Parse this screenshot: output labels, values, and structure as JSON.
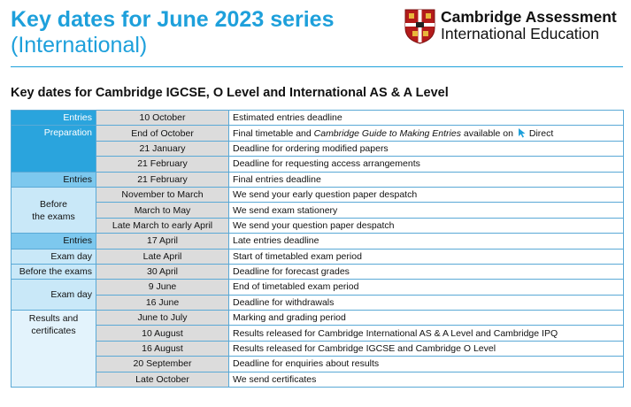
{
  "header": {
    "title": "Key dates for June 2023 series",
    "subtitle": "(International)"
  },
  "brand": {
    "line1": "Cambridge Assessment",
    "line2": "International Education",
    "colors": {
      "shield_red": "#b31b1b",
      "shield_gold": "#e8b73b"
    }
  },
  "section_heading": "Key dates for Cambridge IGCSE, O Level and International AS & A Level",
  "colors": {
    "accent": "#1ea0db",
    "dark_cell": "#2aa4dd",
    "medium_cell": "#7dc8ee",
    "light_cell": "#c9e8f8",
    "pale_cell": "#e3f3fc",
    "date_cell": "#dcdcdc"
  },
  "table": {
    "groups": [
      {
        "label": "Entries",
        "style": "dark",
        "rows": [
          {
            "date": "10 October",
            "desc": "Estimated entries deadline"
          }
        ]
      },
      {
        "label": "Preparation",
        "style": "dark",
        "rows": [
          {
            "date": "End of October",
            "desc_pre": "Final timetable and ",
            "desc_em": "Cambridge Guide to Making Entries",
            "desc_post": " available on ",
            "desc_tail": "Direct",
            "icon": "cursor-arrow-icon"
          },
          {
            "date": "21 January",
            "desc": "Deadline for ordering modified papers"
          },
          {
            "date": "21 February",
            "desc": "Deadline for requesting access arrangements"
          }
        ]
      },
      {
        "label": "Entries",
        "style": "medium",
        "rows": [
          {
            "date": "21 February",
            "desc": "Final entries deadline"
          }
        ]
      },
      {
        "label_line1": "Before",
        "label_line2": "the exams",
        "style": "light",
        "rows": [
          {
            "date": "November to March",
            "desc": "We send your early question paper despatch"
          },
          {
            "date": "March to May",
            "desc": "We send exam stationery"
          },
          {
            "date": "Late March to early April",
            "desc": "We send your question paper despatch"
          }
        ]
      },
      {
        "label": "Entries",
        "style": "medium",
        "rows": [
          {
            "date": "17 April",
            "desc": "Late entries deadline"
          }
        ]
      },
      {
        "label": "Exam day",
        "style": "light",
        "rows": [
          {
            "date": "Late April",
            "desc": "Start of timetabled exam period"
          }
        ]
      },
      {
        "label": "Before the exams",
        "style": "light",
        "rows": [
          {
            "date": "30 April",
            "desc": "Deadline for forecast grades"
          }
        ]
      },
      {
        "label": "Exam day",
        "style": "light",
        "rows": [
          {
            "date": "9 June",
            "desc": "End of timetabled exam period"
          },
          {
            "date": "16 June",
            "desc": "Deadline for withdrawals"
          }
        ]
      },
      {
        "label_line1": "Results and",
        "label_line2": "certificates",
        "style": "pale",
        "rows": [
          {
            "date": "June to July",
            "desc": "Marking and grading period"
          },
          {
            "date": "10 August",
            "desc": "Results released for Cambridge International AS & A Level and Cambridge IPQ"
          },
          {
            "date": "16 August",
            "desc": "Results released for Cambridge IGCSE and Cambridge O Level"
          },
          {
            "date": "20 September",
            "desc": "Deadline for enquiries about results"
          },
          {
            "date": "Late October",
            "desc": "We send certificates"
          }
        ]
      }
    ]
  }
}
